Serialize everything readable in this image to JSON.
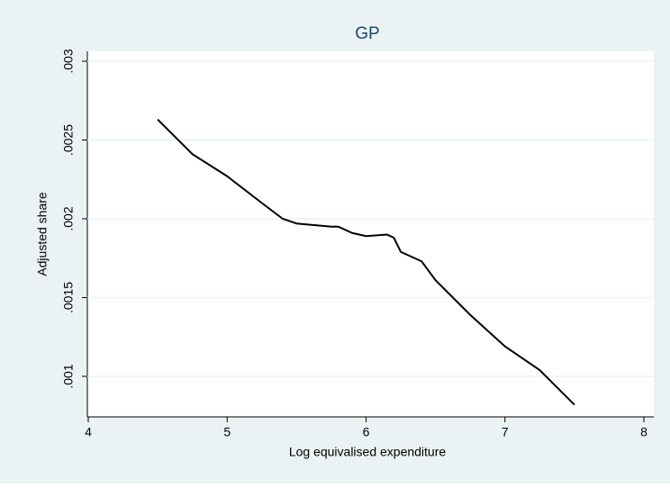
{
  "chart_data": {
    "type": "line",
    "title": "GP",
    "xlabel": "Log equivalised expenditure",
    "ylabel": "Adjusted share",
    "x": [
      4.5,
      4.75,
      5.0,
      5.25,
      5.4,
      5.5,
      5.75,
      5.8,
      5.9,
      6.0,
      6.15,
      6.2,
      6.25,
      6.4,
      6.5,
      6.75,
      7.0,
      7.25,
      7.5
    ],
    "series": [
      {
        "name": "GP",
        "color": "#000000",
        "values": [
          0.00263,
          0.00241,
          0.00227,
          0.0021,
          0.002,
          0.00197,
          0.00195,
          0.00195,
          0.00191,
          0.00189,
          0.0019,
          0.00188,
          0.00179,
          0.00173,
          0.00161,
          0.00139,
          0.00119,
          0.00104,
          0.00082
        ]
      }
    ],
    "xlim": [
      4,
      8
    ],
    "xticks": [
      4,
      5,
      6,
      7,
      8
    ],
    "ylim": [
      0.001,
      0.003
    ],
    "yticks": [
      {
        "value": 0.001,
        "label": ".001"
      },
      {
        "value": 0.0015,
        "label": ".0015"
      },
      {
        "value": 0.002,
        "label": ".002"
      },
      {
        "value": 0.0025,
        "label": ".0025"
      },
      {
        "value": 0.003,
        "label": ".003"
      }
    ],
    "grid": true
  }
}
